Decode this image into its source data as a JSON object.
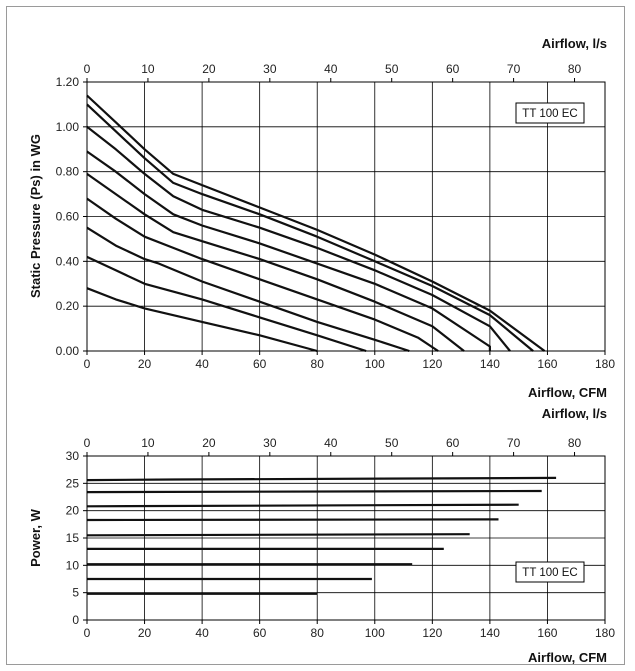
{
  "chart_data": [
    {
      "type": "line",
      "title": "",
      "xlabel": "Airflow, CFM",
      "xlabel_top": "Airflow, l/s",
      "ylabel": "Static Pressure (Ps) in WG",
      "xlim": [
        0,
        180
      ],
      "ylim": [
        0,
        1.2
      ],
      "xlim_top": [
        0,
        85
      ],
      "x_ticks": [
        "0",
        "20",
        "40",
        "60",
        "80",
        "100",
        "120",
        "140",
        "160",
        "180"
      ],
      "x_top_ticks": [
        "0",
        "10",
        "20",
        "30",
        "40",
        "50",
        "60",
        "70",
        "80"
      ],
      "y_ticks": [
        "0.00",
        "0.20",
        "0.40",
        "0.60",
        "0.80",
        "1.00",
        "1.20"
      ],
      "grid": true,
      "legend": "TT 100 EC",
      "series": [
        {
          "points": [
            [
              0,
              0.28
            ],
            [
              10,
              0.23
            ],
            [
              20,
              0.19
            ],
            [
              40,
              0.13
            ],
            [
              60,
              0.07
            ],
            [
              80,
              0.0
            ]
          ]
        },
        {
          "points": [
            [
              0,
              0.42
            ],
            [
              10,
              0.36
            ],
            [
              20,
              0.3
            ],
            [
              40,
              0.23
            ],
            [
              60,
              0.15
            ],
            [
              80,
              0.07
            ],
            [
              97,
              0.0
            ]
          ]
        },
        {
          "points": [
            [
              0,
              0.55
            ],
            [
              10,
              0.47
            ],
            [
              20,
              0.41
            ],
            [
              25,
              0.39
            ],
            [
              40,
              0.31
            ],
            [
              60,
              0.22
            ],
            [
              80,
              0.13
            ],
            [
              100,
              0.05
            ],
            [
              112,
              0.0
            ]
          ]
        },
        {
          "points": [
            [
              0,
              0.68
            ],
            [
              10,
              0.59
            ],
            [
              20,
              0.51
            ],
            [
              30,
              0.46
            ],
            [
              40,
              0.41
            ],
            [
              60,
              0.32
            ],
            [
              80,
              0.23
            ],
            [
              100,
              0.14
            ],
            [
              115,
              0.06
            ],
            [
              122,
              0.0
            ]
          ]
        },
        {
          "points": [
            [
              0,
              0.79
            ],
            [
              10,
              0.7
            ],
            [
              20,
              0.61
            ],
            [
              30,
              0.53
            ],
            [
              40,
              0.49
            ],
            [
              60,
              0.41
            ],
            [
              80,
              0.32
            ],
            [
              100,
              0.22
            ],
            [
              120,
              0.11
            ],
            [
              131,
              0.0
            ]
          ]
        },
        {
          "points": [
            [
              0,
              0.89
            ],
            [
              10,
              0.8
            ],
            [
              20,
              0.7
            ],
            [
              30,
              0.61
            ],
            [
              40,
              0.56
            ],
            [
              60,
              0.48
            ],
            [
              80,
              0.39
            ],
            [
              100,
              0.3
            ],
            [
              120,
              0.19
            ],
            [
              140,
              0.02
            ],
            [
              140,
              0.0
            ]
          ]
        },
        {
          "points": [
            [
              0,
              1.0
            ],
            [
              10,
              0.9
            ],
            [
              20,
              0.79
            ],
            [
              30,
              0.69
            ],
            [
              40,
              0.63
            ],
            [
              60,
              0.55
            ],
            [
              80,
              0.46
            ],
            [
              100,
              0.36
            ],
            [
              120,
              0.25
            ],
            [
              140,
              0.11
            ],
            [
              147,
              0.0
            ]
          ]
        },
        {
          "points": [
            [
              0,
              1.1
            ],
            [
              10,
              0.98
            ],
            [
              20,
              0.86
            ],
            [
              30,
              0.75
            ],
            [
              40,
              0.7
            ],
            [
              60,
              0.61
            ],
            [
              80,
              0.51
            ],
            [
              100,
              0.4
            ],
            [
              120,
              0.29
            ],
            [
              140,
              0.16
            ],
            [
              155,
              0.0
            ]
          ]
        },
        {
          "points": [
            [
              0,
              1.14
            ],
            [
              10,
              1.02
            ],
            [
              20,
              0.9
            ],
            [
              30,
              0.79
            ],
            [
              40,
              0.74
            ],
            [
              60,
              0.64
            ],
            [
              80,
              0.54
            ],
            [
              100,
              0.43
            ],
            [
              120,
              0.31
            ],
            [
              140,
              0.18
            ],
            [
              159,
              0.0
            ]
          ]
        }
      ]
    },
    {
      "type": "line",
      "title": "",
      "xlabel": "Airflow, CFM",
      "xlabel_top": "Airflow, l/s",
      "ylabel": "Power, W",
      "xlim": [
        0,
        180
      ],
      "ylim": [
        0,
        30
      ],
      "xlim_top": [
        0,
        85
      ],
      "x_ticks": [
        "0",
        "20",
        "40",
        "60",
        "80",
        "100",
        "120",
        "140",
        "160",
        "180"
      ],
      "x_top_ticks": [
        "0",
        "10",
        "20",
        "30",
        "40",
        "50",
        "60",
        "70",
        "80"
      ],
      "y_ticks": [
        "0",
        "5",
        "10",
        "15",
        "20",
        "25",
        "30"
      ],
      "grid": true,
      "legend": "TT 100 EC",
      "series": [
        {
          "points": [
            [
              0,
              4.8
            ],
            [
              80,
              4.8
            ]
          ]
        },
        {
          "points": [
            [
              0,
              7.5
            ],
            [
              99,
              7.5
            ]
          ]
        },
        {
          "points": [
            [
              0,
              10.2
            ],
            [
              113,
              10.2
            ]
          ]
        },
        {
          "points": [
            [
              0,
              13.0
            ],
            [
              124,
              13.0
            ]
          ]
        },
        {
          "points": [
            [
              0,
              15.5
            ],
            [
              133,
              15.7
            ]
          ]
        },
        {
          "points": [
            [
              0,
              18.3
            ],
            [
              143,
              18.4
            ]
          ]
        },
        {
          "points": [
            [
              0,
              20.8
            ],
            [
              150,
              21.1
            ]
          ]
        },
        {
          "points": [
            [
              0,
              23.4
            ],
            [
              158,
              23.6
            ]
          ]
        },
        {
          "points": [
            [
              0,
              25.6
            ],
            [
              30,
              25.7
            ],
            [
              163,
              26.0
            ]
          ]
        }
      ]
    }
  ]
}
